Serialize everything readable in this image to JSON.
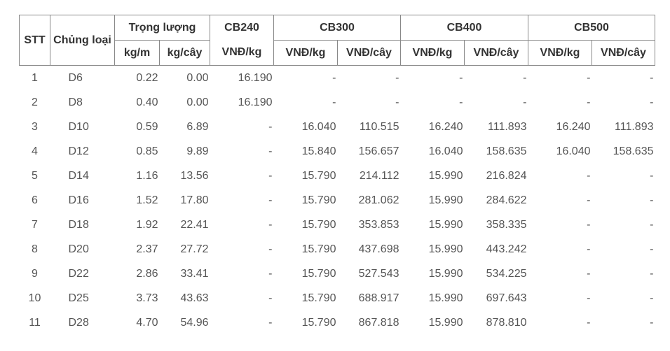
{
  "header": {
    "row1": [
      "STT",
      "Chủng loại",
      "Trọng lượng",
      "CB240",
      "CB300",
      "CB400",
      "CB500"
    ],
    "row2": [
      "kg/m",
      "kg/cây",
      "VNĐ/kg",
      "VNĐ/kg",
      "VNĐ/cây",
      "VNĐ/kg",
      "VNĐ/cây",
      "VNĐ/kg",
      "VNĐ/cây"
    ]
  },
  "table": {
    "rows": [
      [
        "1",
        "D6",
        "0.22",
        "0.00",
        "16.190",
        "-",
        "-",
        "-",
        "-",
        "-",
        "-"
      ],
      [
        "2",
        "D8",
        "0.40",
        "0.00",
        "16.190",
        "-",
        "-",
        "-",
        "-",
        "-",
        "-"
      ],
      [
        "3",
        "D10",
        "0.59",
        "6.89",
        "-",
        "16.040",
        "110.515",
        "16.240",
        "111.893",
        "16.240",
        "111.893"
      ],
      [
        "4",
        "D12",
        "0.85",
        "9.89",
        "-",
        "15.840",
        "156.657",
        "16.040",
        "158.635",
        "16.040",
        "158.635"
      ],
      [
        "5",
        "D14",
        "1.16",
        "13.56",
        "-",
        "15.790",
        "214.112",
        "15.990",
        "216.824",
        "-",
        "-"
      ],
      [
        "6",
        "D16",
        "1.52",
        "17.80",
        "-",
        "15.790",
        "281.062",
        "15.990",
        "284.622",
        "-",
        "-"
      ],
      [
        "7",
        "D18",
        "1.92",
        "22.41",
        "-",
        "15.790",
        "353.853",
        "15.990",
        "358.335",
        "-",
        "-"
      ],
      [
        "8",
        "D20",
        "2.37",
        "27.72",
        "-",
        "15.790",
        "437.698",
        "15.990",
        "443.242",
        "-",
        "-"
      ],
      [
        "9",
        "D22",
        "2.86",
        "33.41",
        "-",
        "15.790",
        "527.543",
        "15.990",
        "534.225",
        "-",
        "-"
      ],
      [
        "10",
        "D25",
        "3.73",
        "43.63",
        "-",
        "15.790",
        "688.917",
        "15.990",
        "697.643",
        "-",
        "-"
      ],
      [
        "11",
        "D28",
        "4.70",
        "54.96",
        "-",
        "15.790",
        "867.818",
        "15.990",
        "878.810",
        "-",
        "-"
      ]
    ]
  }
}
